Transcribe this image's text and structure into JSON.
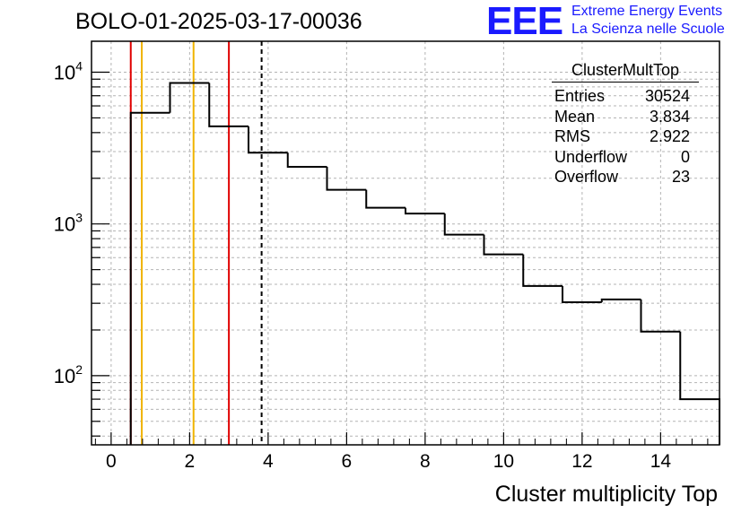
{
  "run_title": "BOLO-01-2025-03-17-00036",
  "logo": {
    "mark": "EEE",
    "line1": "Extreme Energy Events",
    "line2": "La Scienza nelle Scuole",
    "color": "#1a1aff"
  },
  "stats_box": {
    "name": "ClusterMultTop",
    "rows": [
      {
        "label": "Entries",
        "value": "30524"
      },
      {
        "label": "Mean",
        "value": "3.834"
      },
      {
        "label": "RMS",
        "value": "2.922"
      },
      {
        "label": "Underflow",
        "value": "0"
      },
      {
        "label": "Overflow",
        "value": "23"
      }
    ]
  },
  "chart_data": {
    "type": "histogram",
    "title": "BOLO-01-2025-03-17-00036",
    "xlabel": "Cluster multiplicity Top",
    "ylabel": "",
    "xlim": [
      -0.5,
      15.5
    ],
    "ylim": [
      35,
      16000
    ],
    "yscale": "log",
    "grid": true,
    "x_ticks": [
      0,
      2,
      4,
      6,
      8,
      10,
      12,
      14
    ],
    "y_decades": [
      {
        "base": "10",
        "exp": "2",
        "value": 100
      },
      {
        "base": "10",
        "exp": "3",
        "value": 1000
      },
      {
        "base": "10",
        "exp": "4",
        "value": 10000
      }
    ],
    "bins": [
      {
        "lo": 0.5,
        "hi": 1.5,
        "count": 5400
      },
      {
        "lo": 1.5,
        "hi": 2.5,
        "count": 8500
      },
      {
        "lo": 2.5,
        "hi": 3.5,
        "count": 4400
      },
      {
        "lo": 3.5,
        "hi": 4.5,
        "count": 2950
      },
      {
        "lo": 4.5,
        "hi": 5.5,
        "count": 2380
      },
      {
        "lo": 5.5,
        "hi": 6.5,
        "count": 1680
      },
      {
        "lo": 6.5,
        "hi": 7.5,
        "count": 1280
      },
      {
        "lo": 7.5,
        "hi": 8.5,
        "count": 1170
      },
      {
        "lo": 8.5,
        "hi": 9.5,
        "count": 850
      },
      {
        "lo": 9.5,
        "hi": 10.5,
        "count": 630
      },
      {
        "lo": 10.5,
        "hi": 11.5,
        "count": 390
      },
      {
        "lo": 11.5,
        "hi": 12.5,
        "count": 305
      },
      {
        "lo": 12.5,
        "hi": 13.5,
        "count": 318
      },
      {
        "lo": 13.5,
        "hi": 14.5,
        "count": 195
      },
      {
        "lo": 14.5,
        "hi": 15.5,
        "count": 70
      }
    ],
    "vertical_lines": [
      {
        "x": 0.5,
        "color": "#e00000",
        "style": "solid"
      },
      {
        "x": 0.78,
        "color": "#f0b400",
        "style": "solid"
      },
      {
        "x": 2.1,
        "color": "#f0b400",
        "style": "solid"
      },
      {
        "x": 3.0,
        "color": "#e00000",
        "style": "solid"
      },
      {
        "x": 3.834,
        "color": "#000000",
        "style": "dashed"
      }
    ]
  }
}
